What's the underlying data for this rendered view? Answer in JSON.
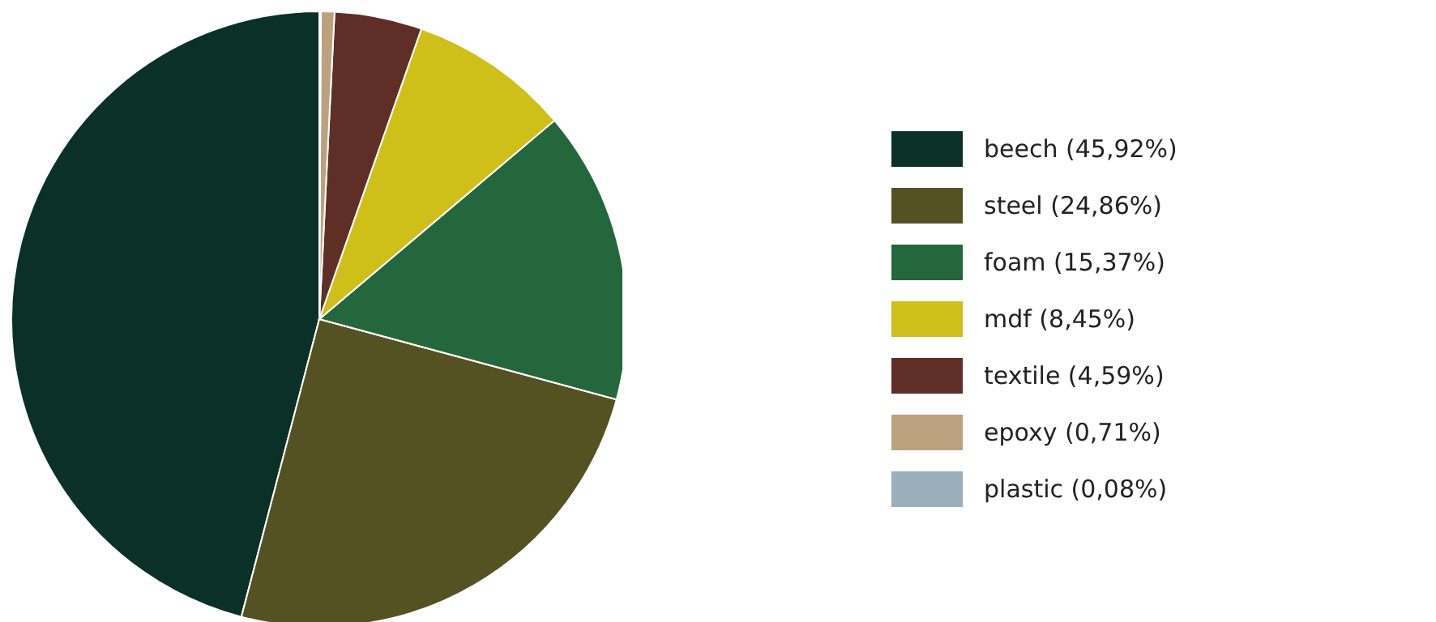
{
  "chart_data": {
    "type": "pie",
    "categories": [
      "beech (45,92%)",
      "steel (24,86%)",
      "foam (15,37%)",
      "mdf (8,45%)",
      "textile (4,59%)",
      "epoxy (0,71%)",
      "plastic (0,08%)"
    ],
    "values": [
      45.92,
      24.86,
      15.37,
      8.45,
      4.59,
      0.71,
      0.08
    ],
    "colors": [
      "#0b3027",
      "#545123",
      "#25673c",
      "#cfbf19",
      "#5e2e27",
      "#bda17f",
      "#9aafbb"
    ],
    "legend": "right"
  }
}
